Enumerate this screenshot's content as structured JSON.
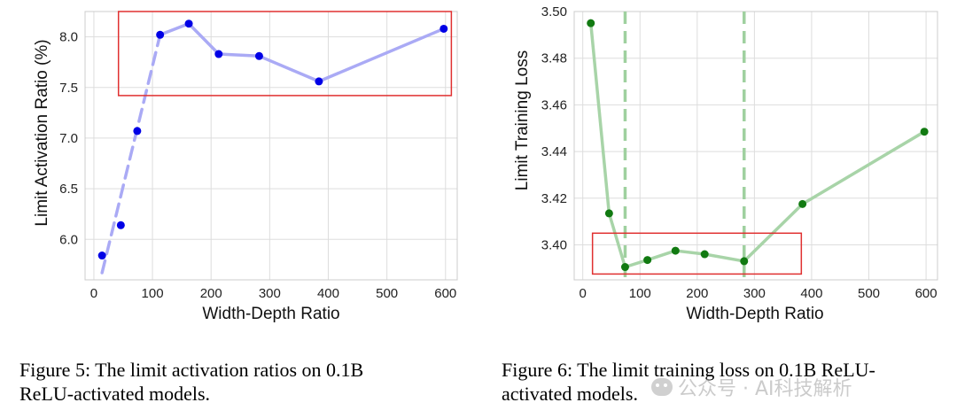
{
  "chart_data": [
    {
      "type": "line",
      "id": "activation",
      "xlabel": "Width-Depth Ratio",
      "ylabel": "Limit Activation Ratio (%)",
      "xlim": [
        -15,
        620
      ],
      "ylim": [
        5.6,
        8.25
      ],
      "xticks": [
        0,
        100,
        200,
        300,
        400,
        500,
        600
      ],
      "yticks": [
        6.0,
        6.5,
        7.0,
        7.5,
        8.0
      ],
      "ytick_decimals": 1,
      "x": [
        14,
        46,
        74,
        113,
        162,
        213,
        282,
        384,
        597
      ],
      "y": [
        5.84,
        6.14,
        7.07,
        8.02,
        8.13,
        7.83,
        7.81,
        7.56,
        8.08
      ],
      "trend_dashed": {
        "x": [
          14,
          113
        ],
        "y": [
          5.67,
          8.02
        ]
      },
      "trend_solid": {
        "x": [
          113,
          162,
          213,
          282,
          384,
          597
        ],
        "y": [
          8.02,
          8.13,
          7.83,
          7.81,
          7.56,
          8.08
        ]
      },
      "highlight_box": {
        "x0": 42,
        "x1": 610,
        "y0": 7.42,
        "y1": 8.25
      },
      "colors": {
        "marker": "#0000e6",
        "line": "#aaaaf5",
        "box": "#e03030",
        "grid": "#dddddd"
      }
    },
    {
      "type": "line",
      "id": "loss",
      "xlabel": "Width-Depth Ratio",
      "ylabel": "Limit Training Loss",
      "xlim": [
        -15,
        620
      ],
      "ylim": [
        3.385,
        3.5
      ],
      "xticks": [
        0,
        100,
        200,
        300,
        400,
        500,
        600
      ],
      "yticks": [
        3.4,
        3.42,
        3.44,
        3.46,
        3.48,
        3.5
      ],
      "ytick_decimals": 2,
      "x": [
        14,
        46,
        74,
        113,
        162,
        213,
        282,
        384,
        597
      ],
      "y": [
        3.495,
        3.4135,
        3.3905,
        3.3935,
        3.3975,
        3.396,
        3.393,
        3.4175,
        3.4485
      ],
      "vlines": [
        74,
        282
      ],
      "highlight_box": {
        "x0": 17,
        "x1": 382,
        "y0": 3.3875,
        "y1": 3.405
      },
      "colors": {
        "marker": "#117a11",
        "line": "#a8d4a8",
        "vline": "#9fd09f",
        "box": "#e03030",
        "grid": "#dddddd"
      }
    }
  ],
  "captions": {
    "fig5_line1": "Figure 5:  The limit activation ratios on 0.1B",
    "fig5_line2": "ReLU-activated models.",
    "fig6_line1": "Figure 6: The limit training loss on 0.1B ReLU-",
    "fig6_line2": "activated models."
  },
  "watermark": {
    "text": "公众号 · AI科技解析",
    "icon": "wechat-icon"
  }
}
